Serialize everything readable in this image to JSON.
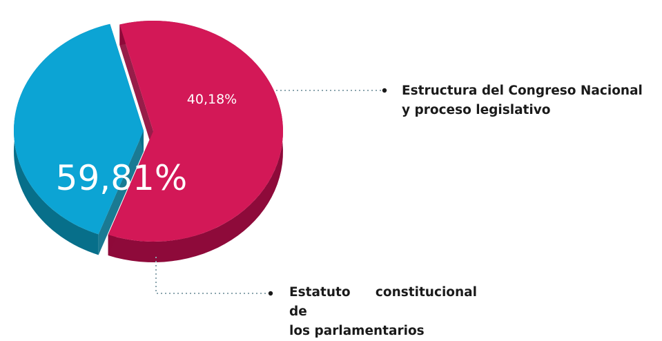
{
  "chart_data": {
    "type": "pie",
    "style": "3d-exploded",
    "slices": [
      {
        "label_lines": [
          "Estatuto constitucional de",
          "los parlamentarios"
        ],
        "value": 59.81,
        "value_label": "59,81%",
        "color": "#d31857",
        "side_color": "#8e0a3a"
      },
      {
        "label_lines": [
          "Estructura del Congreso Nacional",
          "y proceso legislativo"
        ],
        "value": 40.18,
        "value_label": "40,18%",
        "color": "#0ca4d4",
        "side_color": "#076f8a"
      }
    ],
    "leader_line_color": "#8aa4ad"
  }
}
